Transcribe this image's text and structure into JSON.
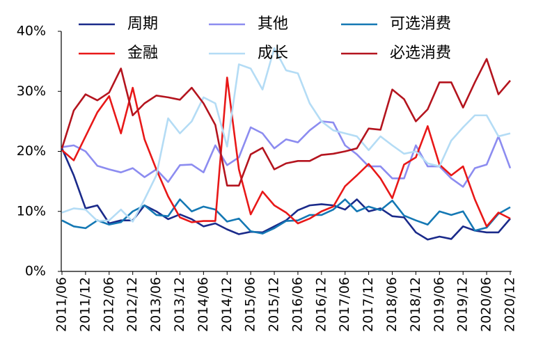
{
  "chart_data": {
    "type": "line",
    "categories": [
      "2011/06",
      null,
      "2011/12",
      null,
      "2012/06",
      null,
      "2012/12",
      null,
      "2013/06",
      null,
      "2013/12",
      null,
      "2014/06",
      null,
      "2014/12",
      null,
      "2015/06",
      null,
      "2015/12",
      null,
      "2016/06",
      null,
      "2016/12",
      null,
      "2017/06",
      null,
      "2017/12",
      null,
      "2018/06",
      null,
      "2018/12",
      null,
      "2019/06",
      null,
      "2019/12",
      null,
      "2020/06",
      null,
      "2020/12"
    ],
    "ylim": [
      0,
      40
    ],
    "yticks": [
      {
        "value": 0,
        "label": "0%"
      },
      {
        "value": 10,
        "label": "10%"
      },
      {
        "value": 20,
        "label": "20%"
      },
      {
        "value": 30,
        "label": "30%"
      },
      {
        "value": 40,
        "label": "40%"
      }
    ],
    "series": [
      {
        "name": "周期",
        "color": "#1a2a8a",
        "values": [
          20.5,
          16,
          10.5,
          11,
          8,
          8.5,
          8.5,
          11,
          10,
          8.7,
          9.5,
          8.7,
          7.5,
          8,
          7,
          6.2,
          6.6,
          6.5,
          7.5,
          8.5,
          10.2,
          11,
          11.2,
          11,
          10.3,
          12,
          10,
          10.5,
          9.2,
          9,
          6.5,
          5.3,
          5.8,
          5.4,
          7.5,
          6.8,
          6.5,
          6.5,
          8.8
        ]
      },
      {
        "name": "其他",
        "color": "#8c8cf0",
        "values": [
          20.7,
          21,
          20,
          17.6,
          17,
          16.5,
          17.2,
          15.7,
          17,
          14.9,
          17.7,
          17.8,
          16.5,
          21,
          17.7,
          19,
          24,
          23,
          20.5,
          22,
          21.5,
          23.5,
          25,
          24.8,
          21,
          19.5,
          17.5,
          17.5,
          15.5,
          15.5,
          21,
          17.5,
          17.5,
          15.5,
          14.1,
          17.2,
          17.8,
          22.5,
          17.2
        ]
      },
      {
        "name": "可选消费",
        "color": "#1478b4",
        "values": [
          8.5,
          7.5,
          7.2,
          8.5,
          7.8,
          8.2,
          10,
          11,
          9.4,
          9.2,
          12,
          10,
          10.8,
          10.3,
          8.3,
          8.8,
          6.7,
          6.3,
          7.2,
          8.4,
          8.5,
          9.4,
          9.4,
          10.3,
          12,
          10,
          10.8,
          10.2,
          11.8,
          9.3,
          8.5,
          7.8,
          10,
          9.4,
          10,
          6.8,
          7.3,
          9.6,
          10.7
        ]
      },
      {
        "name": "金融",
        "color": "#e81818",
        "values": [
          20.2,
          18.5,
          22.5,
          26.5,
          29.2,
          23,
          30.6,
          22,
          17,
          12.5,
          9,
          8.2,
          8.4,
          8.4,
          32.3,
          17,
          9.5,
          13.3,
          11,
          9.8,
          8,
          8.8,
          10,
          10.8,
          14.2,
          16,
          17.9,
          15.5,
          12.2,
          17.8,
          19,
          24.2,
          17.8,
          16,
          17.5,
          12,
          7.5,
          9.8,
          8.8
        ]
      },
      {
        "name": "成长",
        "color": "#b4dcf5",
        "values": [
          9.8,
          10.5,
          10.3,
          8.4,
          8.5,
          10.3,
          8.3,
          12,
          16,
          25.5,
          23,
          25,
          29,
          28,
          20.8,
          34.5,
          33.8,
          30.3,
          37.2,
          33.5,
          33,
          28,
          25,
          23.5,
          23,
          22.5,
          20.2,
          22.5,
          21,
          19.6,
          20,
          18,
          17.5,
          21.8,
          24,
          26,
          26,
          22.5,
          23
        ]
      },
      {
        "name": "必选消费",
        "color": "#b4141e",
        "values": [
          20.5,
          26.8,
          29.5,
          28.5,
          29.8,
          33.8,
          26,
          28,
          29.3,
          29,
          28.6,
          30.6,
          28,
          24.4,
          14.3,
          14.3,
          19.5,
          20.6,
          17,
          18,
          18.4,
          18.4,
          19.4,
          19.6,
          20,
          20.5,
          23.8,
          23.6,
          30.3,
          28.7,
          25,
          27,
          31.5,
          31.5,
          27.3,
          31.5,
          35.4,
          29.5,
          31.8
        ]
      }
    ]
  }
}
